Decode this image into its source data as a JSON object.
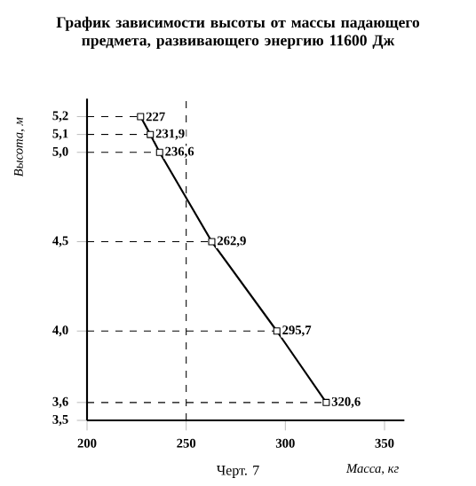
{
  "chart_data": {
    "type": "line",
    "title": "График зависимости высоты от массы падающего предмета, развивающего энергию 11600 Дж",
    "xlabel": "Масса, кг",
    "ylabel": "Высота, м",
    "series": [
      {
        "color": "#000000",
        "x": [
          227,
          231.9,
          236.6,
          262.9,
          295.7,
          320.6
        ],
        "values": [
          5.2,
          5.1,
          5.0,
          4.5,
          4.0,
          3.6
        ]
      }
    ],
    "xlim": [
      200,
      360
    ],
    "xticks": [
      200,
      250,
      300,
      350
    ],
    "ylim": [
      3.5,
      5.3
    ],
    "yticks": [
      {
        "value": 3.5,
        "label": "3,5"
      },
      {
        "value": 3.6,
        "label": "3,6"
      },
      {
        "value": 4.0,
        "label": "4,0"
      },
      {
        "value": 4.5,
        "label": "4,5"
      },
      {
        "value": 5.0,
        "label": "5,0"
      },
      {
        "value": 5.1,
        "label": "5,1"
      },
      {
        "value": 5.2,
        "label": "5,2"
      }
    ],
    "ref_lines": [
      {
        "axis": "x",
        "value": 250,
        "line_style": "dashed"
      }
    ],
    "marker": "square",
    "line_style": "solid",
    "grid": "y",
    "annotations": [
      {
        "text": "227",
        "x": 227,
        "y": 5.2
      },
      {
        "text": "231,9",
        "x": 231.9,
        "y": 5.1
      },
      {
        "text": "236,6",
        "x": 236.6,
        "y": 5.0
      },
      {
        "text": "262,9",
        "x": 262.9,
        "y": 4.5
      },
      {
        "text": "295,7",
        "x": 295.7,
        "y": 4.0
      },
      {
        "text": "320,6",
        "x": 320.6,
        "y": 3.6
      },
      "Черт. 7"
    ]
  }
}
